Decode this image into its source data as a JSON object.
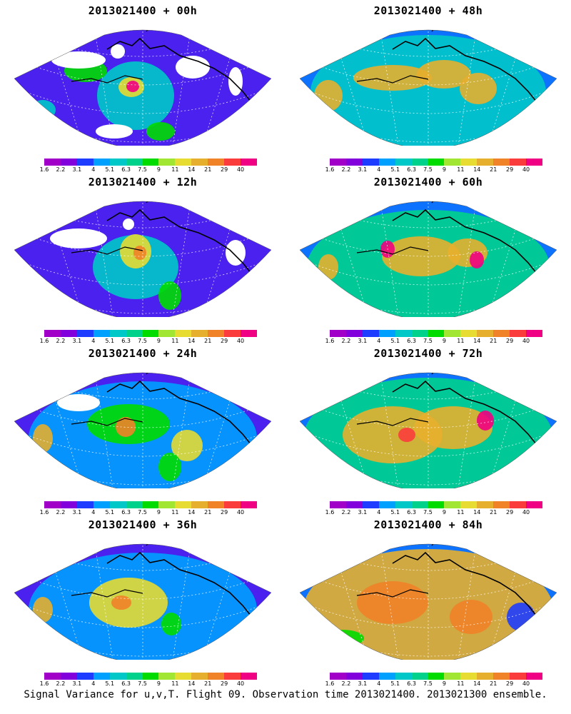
{
  "panels": [
    {
      "title": "2013021400 + 00h",
      "missing_data": true
    },
    {
      "title": "2013021400 + 48h",
      "missing_data": false
    },
    {
      "title": "2013021400 + 12h",
      "missing_data": true
    },
    {
      "title": "2013021400 + 60h",
      "missing_data": false
    },
    {
      "title": "2013021400 + 24h",
      "missing_data": true
    },
    {
      "title": "2013021400 + 72h",
      "missing_data": false
    },
    {
      "title": "2013021400 + 36h",
      "missing_data": false
    },
    {
      "title": "2013021400 + 84h",
      "missing_data": false
    }
  ],
  "legend": {
    "colors": [
      "#a000c8",
      "#8200dc",
      "#1e3cff",
      "#00a0ff",
      "#00c8c8",
      "#00d28c",
      "#00dc00",
      "#a0e632",
      "#e6dc32",
      "#e6af2d",
      "#f08228",
      "#fa3c3c",
      "#f00082"
    ],
    "labels": [
      "1.6",
      "2.2",
      "3.1",
      "4",
      "5.1",
      "6.3",
      "7.5",
      "9",
      "11",
      "14",
      "21",
      "29",
      "40"
    ]
  },
  "footer": {
    "caption": "Signal Variance for u,v,T. Flight 09. Observation time 2013021400. 2013021300 ensemble."
  }
}
